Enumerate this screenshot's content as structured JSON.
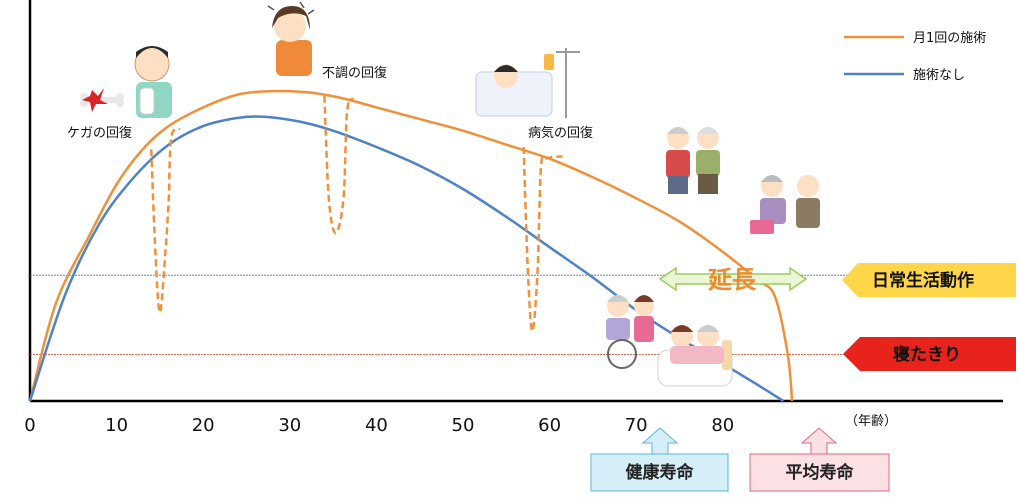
{
  "chart_data": {
    "type": "line",
    "x_ticks": [
      "0",
      "10",
      "20",
      "30",
      "40",
      "50",
      "60",
      "70",
      "80"
    ],
    "x_unit": "（年齢）",
    "xlim": [
      0,
      112
    ],
    "series": [
      {
        "name": "月1回の施術",
        "color": "#f0913a",
        "points": [
          [
            0,
            0
          ],
          [
            3,
            42
          ],
          [
            7,
            72
          ],
          [
            10,
            93
          ],
          [
            13,
            108
          ],
          [
            16,
            118
          ],
          [
            20,
            126
          ],
          [
            24,
            131.5
          ],
          [
            28,
            133
          ],
          [
            32,
            132.5
          ],
          [
            36,
            130
          ],
          [
            40,
            126
          ],
          [
            45,
            121
          ],
          [
            50,
            116
          ],
          [
            55,
            110
          ],
          [
            60,
            104
          ],
          [
            65,
            96
          ],
          [
            70,
            87
          ],
          [
            75,
            77
          ],
          [
            80,
            64
          ],
          [
            84,
            52
          ],
          [
            86,
            45
          ],
          [
            87.5,
            20
          ],
          [
            88,
            0
          ]
        ]
      },
      {
        "name": "施術なし",
        "color": "#4f81c7",
        "points": [
          [
            0,
            0
          ],
          [
            4,
            45
          ],
          [
            8,
            76
          ],
          [
            12,
            96
          ],
          [
            16,
            110
          ],
          [
            20,
            118
          ],
          [
            24,
            121.5
          ],
          [
            27,
            122
          ],
          [
            31,
            120
          ],
          [
            35,
            116
          ],
          [
            40,
            109
          ],
          [
            45,
            101
          ],
          [
            50,
            91
          ],
          [
            55,
            79
          ],
          [
            60,
            66
          ],
          [
            65,
            53
          ],
          [
            70,
            39
          ],
          [
            75,
            27
          ],
          [
            80,
            16
          ],
          [
            84,
            7
          ],
          [
            87,
            0
          ]
        ]
      }
    ],
    "dips": [
      {
        "label": "ケガの回復",
        "points": [
          [
            14,
            108
          ],
          [
            14.5,
            62
          ],
          [
            15,
            38
          ],
          [
            15.6,
            62
          ],
          [
            16,
            85
          ],
          [
            16.3,
            113
          ],
          [
            17.3,
            117
          ]
        ]
      },
      {
        "label": "不調の回復",
        "points": [
          [
            34,
            131
          ],
          [
            34.5,
            87
          ],
          [
            35.3,
            72
          ],
          [
            36.2,
            87
          ],
          [
            36.6,
            124
          ],
          [
            37.3,
            130
          ]
        ]
      },
      {
        "label": "病気の回復",
        "points": [
          [
            57,
            109
          ],
          [
            57.5,
            55
          ],
          [
            58,
            30
          ],
          [
            58.6,
            55
          ],
          [
            59,
            100
          ],
          [
            59.6,
            104
          ],
          [
            61.5,
            105
          ]
        ]
      }
    ],
    "thresholds": [
      {
        "label": "日常生活動作",
        "value": 54,
        "color": "#4a7ab5",
        "tag_color": "#ffd64a"
      },
      {
        "label": "寝たきり",
        "value": 20,
        "color": "#c83c28",
        "tag_color": "#e8231c"
      }
    ],
    "extension_label": "延長",
    "extension_range": [
      73,
      88
    ],
    "life_markers": [
      {
        "label": "健康寿命",
        "age": 75,
        "fill": "#d6eef8",
        "stroke": "#5ab6df"
      },
      {
        "label": "平均寿命",
        "age": 88,
        "fill": "#fbe0e4",
        "stroke": "#e06a80"
      }
    ]
  }
}
